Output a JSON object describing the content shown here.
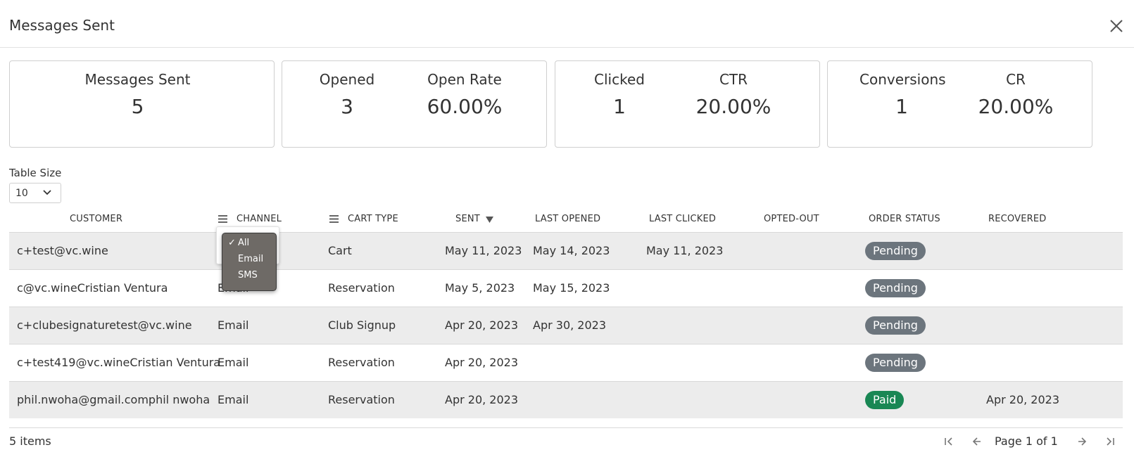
{
  "dialog": {
    "title": "Messages Sent",
    "close_icon": "close-icon"
  },
  "cards": [
    {
      "metrics": [
        {
          "label": "Messages Sent",
          "value": "5"
        }
      ]
    },
    {
      "metrics": [
        {
          "label": "Opened",
          "value": "3"
        },
        {
          "label": "Open Rate",
          "value": "60.00%"
        }
      ]
    },
    {
      "metrics": [
        {
          "label": "Clicked",
          "value": "1"
        },
        {
          "label": "CTR",
          "value": "20.00%"
        }
      ]
    },
    {
      "metrics": [
        {
          "label": "Conversions",
          "value": "1"
        },
        {
          "label": "CR",
          "value": "20.00%"
        }
      ]
    }
  ],
  "table_size": {
    "label": "Table Size",
    "value": "10"
  },
  "table": {
    "columns": {
      "customer": "CUSTOMER",
      "channel": "CHANNEL",
      "cart_type": "CART TYPE",
      "sent": "SENT",
      "last_opened": "LAST OPENED",
      "last_clicked": "LAST CLICKED",
      "opted_out": "OPTED-OUT",
      "order_status": "ORDER STATUS",
      "recovered": "RECOVERED"
    },
    "rows": [
      {
        "customer": "c+test@vc.wine",
        "channel": "",
        "cart_type": "Cart",
        "sent": "May 11, 2023",
        "last_opened": "May 14, 2023",
        "last_clicked": "May 11, 2023",
        "opted_out": "",
        "order_status": "Pending",
        "recovered": ""
      },
      {
        "customer": "c@vc.wineCristian Ventura",
        "channel": "Email",
        "cart_type": "Reservation",
        "sent": "May 5, 2023",
        "last_opened": "May 15, 2023",
        "last_clicked": "",
        "opted_out": "",
        "order_status": "Pending",
        "recovered": ""
      },
      {
        "customer": "c+clubesignaturetest@vc.wine",
        "channel": "Email",
        "cart_type": "Club Signup",
        "sent": "Apr 20, 2023",
        "last_opened": "Apr 30, 2023",
        "last_clicked": "",
        "opted_out": "",
        "order_status": "Pending",
        "recovered": ""
      },
      {
        "customer": "c+test419@vc.wineCristian Ventura",
        "channel": "Email",
        "cart_type": "Reservation",
        "sent": "Apr 20, 2023",
        "last_opened": "",
        "last_clicked": "",
        "opted_out": "",
        "order_status": "Pending",
        "recovered": ""
      },
      {
        "customer": "phil.nwoha@gmail.comphil nwoha",
        "channel": "Email",
        "cart_type": "Reservation",
        "sent": "Apr 20, 2023",
        "last_opened": "",
        "last_clicked": "",
        "opted_out": "",
        "order_status": "Paid",
        "recovered": "Apr 20, 2023"
      }
    ]
  },
  "channel_filter": {
    "check": "✓",
    "options": [
      "All",
      "Email",
      "SMS"
    ],
    "selected": "All"
  },
  "footer": {
    "items": "5 items",
    "page_info": "Page 1 of 1"
  },
  "colors": {
    "pending_badge": "#6c757d",
    "paid_badge": "#198754",
    "row_shade": "#ececec"
  }
}
